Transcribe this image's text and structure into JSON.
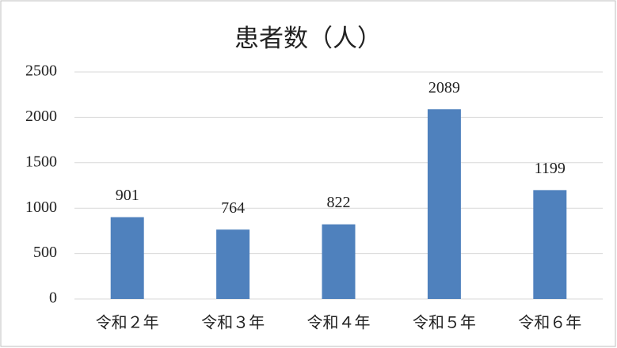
{
  "chart_data": {
    "type": "bar",
    "title": "患者数（人）",
    "categories": [
      "令和２年",
      "令和３年",
      "令和４年",
      "令和５年",
      "令和６年"
    ],
    "values": [
      901,
      764,
      822,
      2089,
      1199
    ],
    "color": "#4f81bd",
    "ylim": [
      0,
      2500
    ],
    "yticks": [
      0,
      500,
      1000,
      1500,
      2000,
      2500
    ],
    "grid": true
  }
}
